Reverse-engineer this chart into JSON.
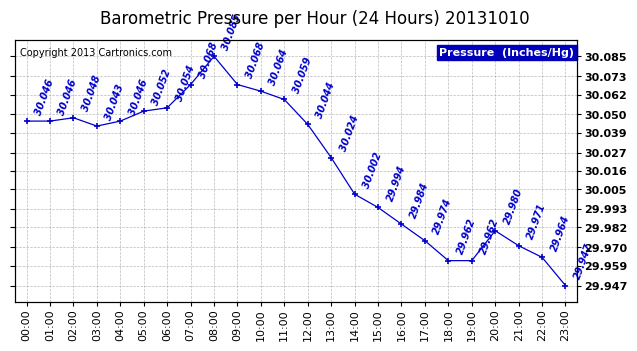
{
  "title": "Barometric Pressure per Hour (24 Hours) 20131010",
  "copyright": "Copyright 2013 Cartronics.com",
  "legend_label": "Pressure  (Inches/Hg)",
  "hours": [
    0,
    1,
    2,
    3,
    4,
    5,
    6,
    7,
    8,
    9,
    10,
    11,
    12,
    13,
    14,
    15,
    16,
    17,
    18,
    19,
    20,
    21,
    22,
    23
  ],
  "x_labels": [
    "00:00",
    "01:00",
    "02:00",
    "03:00",
    "04:00",
    "05:00",
    "06:00",
    "07:00",
    "08:00",
    "09:00",
    "10:00",
    "11:00",
    "12:00",
    "13:00",
    "14:00",
    "15:00",
    "16:00",
    "17:00",
    "18:00",
    "19:00",
    "20:00",
    "21:00",
    "22:00",
    "23:00"
  ],
  "values": [
    30.046,
    30.046,
    30.048,
    30.043,
    30.046,
    30.052,
    30.054,
    30.068,
    30.085,
    30.068,
    30.064,
    30.059,
    30.044,
    30.024,
    30.002,
    29.994,
    29.984,
    29.974,
    29.962,
    29.962,
    29.98,
    29.971,
    29.964,
    29.947
  ],
  "y_ticks": [
    29.947,
    29.959,
    29.97,
    29.982,
    29.993,
    30.005,
    30.016,
    30.027,
    30.039,
    30.05,
    30.062,
    30.073,
    30.085
  ],
  "ylim_min": 29.937,
  "ylim_max": 30.095,
  "line_color": "#0000cc",
  "marker_color": "#0000cc",
  "bg_color": "#ffffff",
  "plot_bg_color": "#ffffff",
  "grid_color": "#aaaaaa",
  "title_fontsize": 12,
  "annotation_fontsize": 7,
  "tick_fontsize": 8,
  "copyright_fontsize": 7,
  "legend_bg": "#0000bb",
  "legend_fg": "#ffffff",
  "legend_fontsize": 8
}
